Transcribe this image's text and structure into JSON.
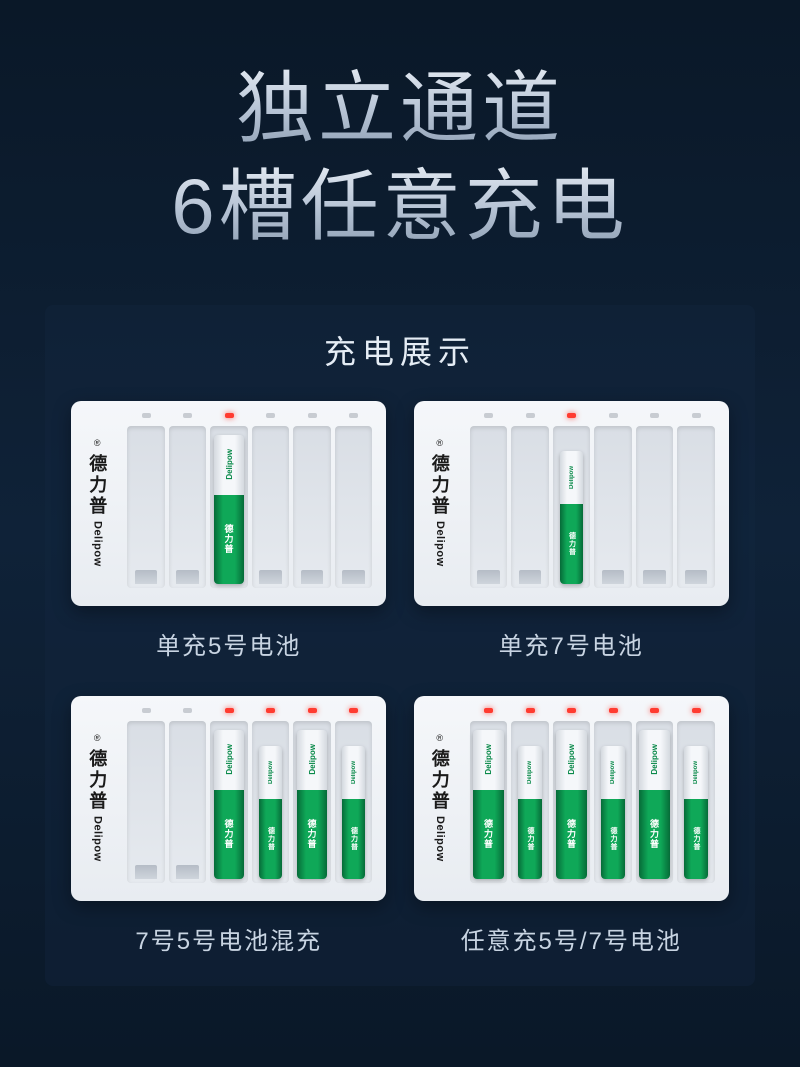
{
  "headline": {
    "line1": "独立通道",
    "line2": "6槽任意充电"
  },
  "panel_title": "充电展示",
  "brand": {
    "cn": "德力普",
    "en": "Delipow",
    "reg": "®"
  },
  "battery": {
    "brand": "Delipow",
    "cn": "德力普"
  },
  "chargers": [
    {
      "caption": "单充5号电池",
      "slots": [
        {
          "led": false,
          "battery": null
        },
        {
          "led": false,
          "battery": null
        },
        {
          "led": true,
          "battery": "aa"
        },
        {
          "led": false,
          "battery": null
        },
        {
          "led": false,
          "battery": null
        },
        {
          "led": false,
          "battery": null
        }
      ]
    },
    {
      "caption": "单充7号电池",
      "slots": [
        {
          "led": false,
          "battery": null
        },
        {
          "led": false,
          "battery": null
        },
        {
          "led": true,
          "battery": "aaa"
        },
        {
          "led": false,
          "battery": null
        },
        {
          "led": false,
          "battery": null
        },
        {
          "led": false,
          "battery": null
        }
      ]
    },
    {
      "caption": "7号5号电池混充",
      "slots": [
        {
          "led": false,
          "battery": null
        },
        {
          "led": false,
          "battery": null
        },
        {
          "led": true,
          "battery": "aa"
        },
        {
          "led": true,
          "battery": "aaa"
        },
        {
          "led": true,
          "battery": "aa"
        },
        {
          "led": true,
          "battery": "aaa"
        }
      ]
    },
    {
      "caption": "任意充5号/7号电池",
      "slots": [
        {
          "led": true,
          "battery": "aa"
        },
        {
          "led": true,
          "battery": "aaa"
        },
        {
          "led": true,
          "battery": "aa"
        },
        {
          "led": true,
          "battery": "aaa"
        },
        {
          "led": true,
          "battery": "aa"
        },
        {
          "led": true,
          "battery": "aaa"
        }
      ]
    }
  ]
}
